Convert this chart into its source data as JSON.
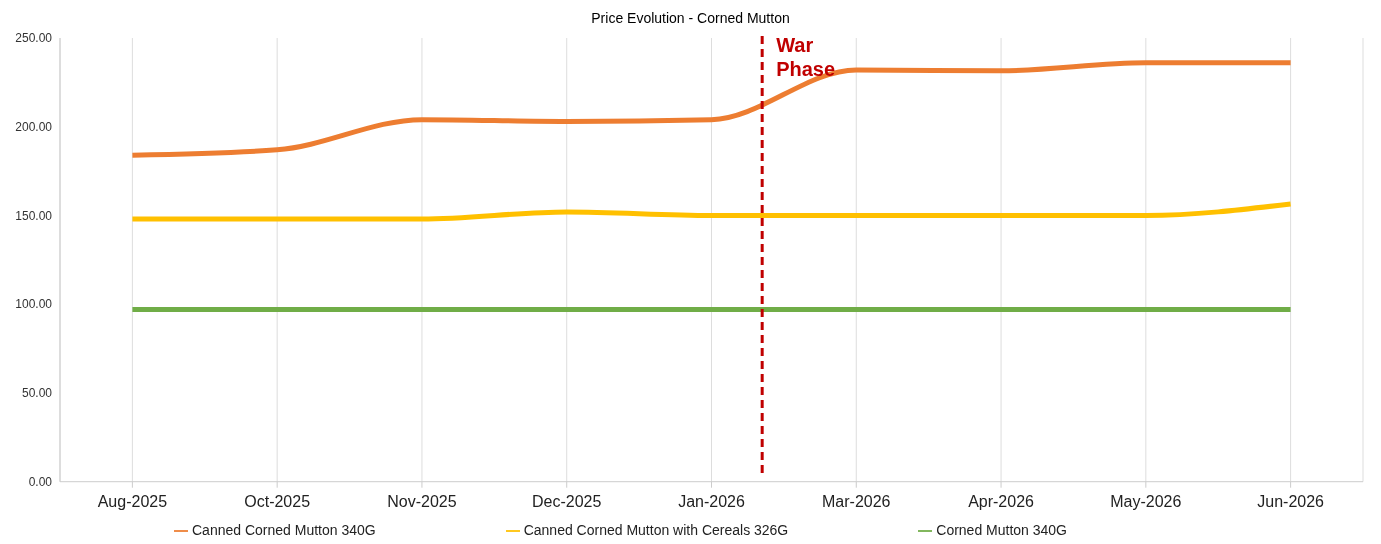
{
  "chart_data": {
    "type": "line",
    "title": "Price Evolution - Corned Mutton",
    "categories": [
      "Aug-2025",
      "Oct-2025",
      "Nov-2025",
      "Dec-2025",
      "Jan-2026",
      "Mar-2026",
      "Apr-2026",
      "May-2026",
      "Jun-2026"
    ],
    "series": [
      {
        "name": "Canned Corned Mutton 340G",
        "color": "#ed7d31",
        "values": [
          184,
          187,
          204,
          203,
          204,
          232,
          231.5,
          236,
          236
        ]
      },
      {
        "name": "Canned Corned Mutton with Cereals 326G",
        "color": "#ffc000",
        "values": [
          148,
          148,
          148,
          152,
          150,
          150,
          150,
          150,
          156.5
        ]
      },
      {
        "name": "Corned Mutton 340G",
        "color": "#70ad47",
        "values": [
          97,
          97,
          97,
          97,
          97,
          97,
          97,
          97,
          97
        ]
      }
    ],
    "ylim": [
      0,
      250
    ],
    "yticks": [
      {
        "value": 0,
        "label": "0.00"
      },
      {
        "value": 50,
        "label": "50.00"
      },
      {
        "value": 100,
        "label": "100.00"
      },
      {
        "value": 150,
        "label": "150.00"
      },
      {
        "value": 200,
        "label": "200.00"
      },
      {
        "value": 250,
        "label": "250.00"
      }
    ],
    "annotations": [
      "War Phase"
    ],
    "grid": "x",
    "legend": "bottom",
    "marker": "none",
    "line_style": "solid"
  }
}
